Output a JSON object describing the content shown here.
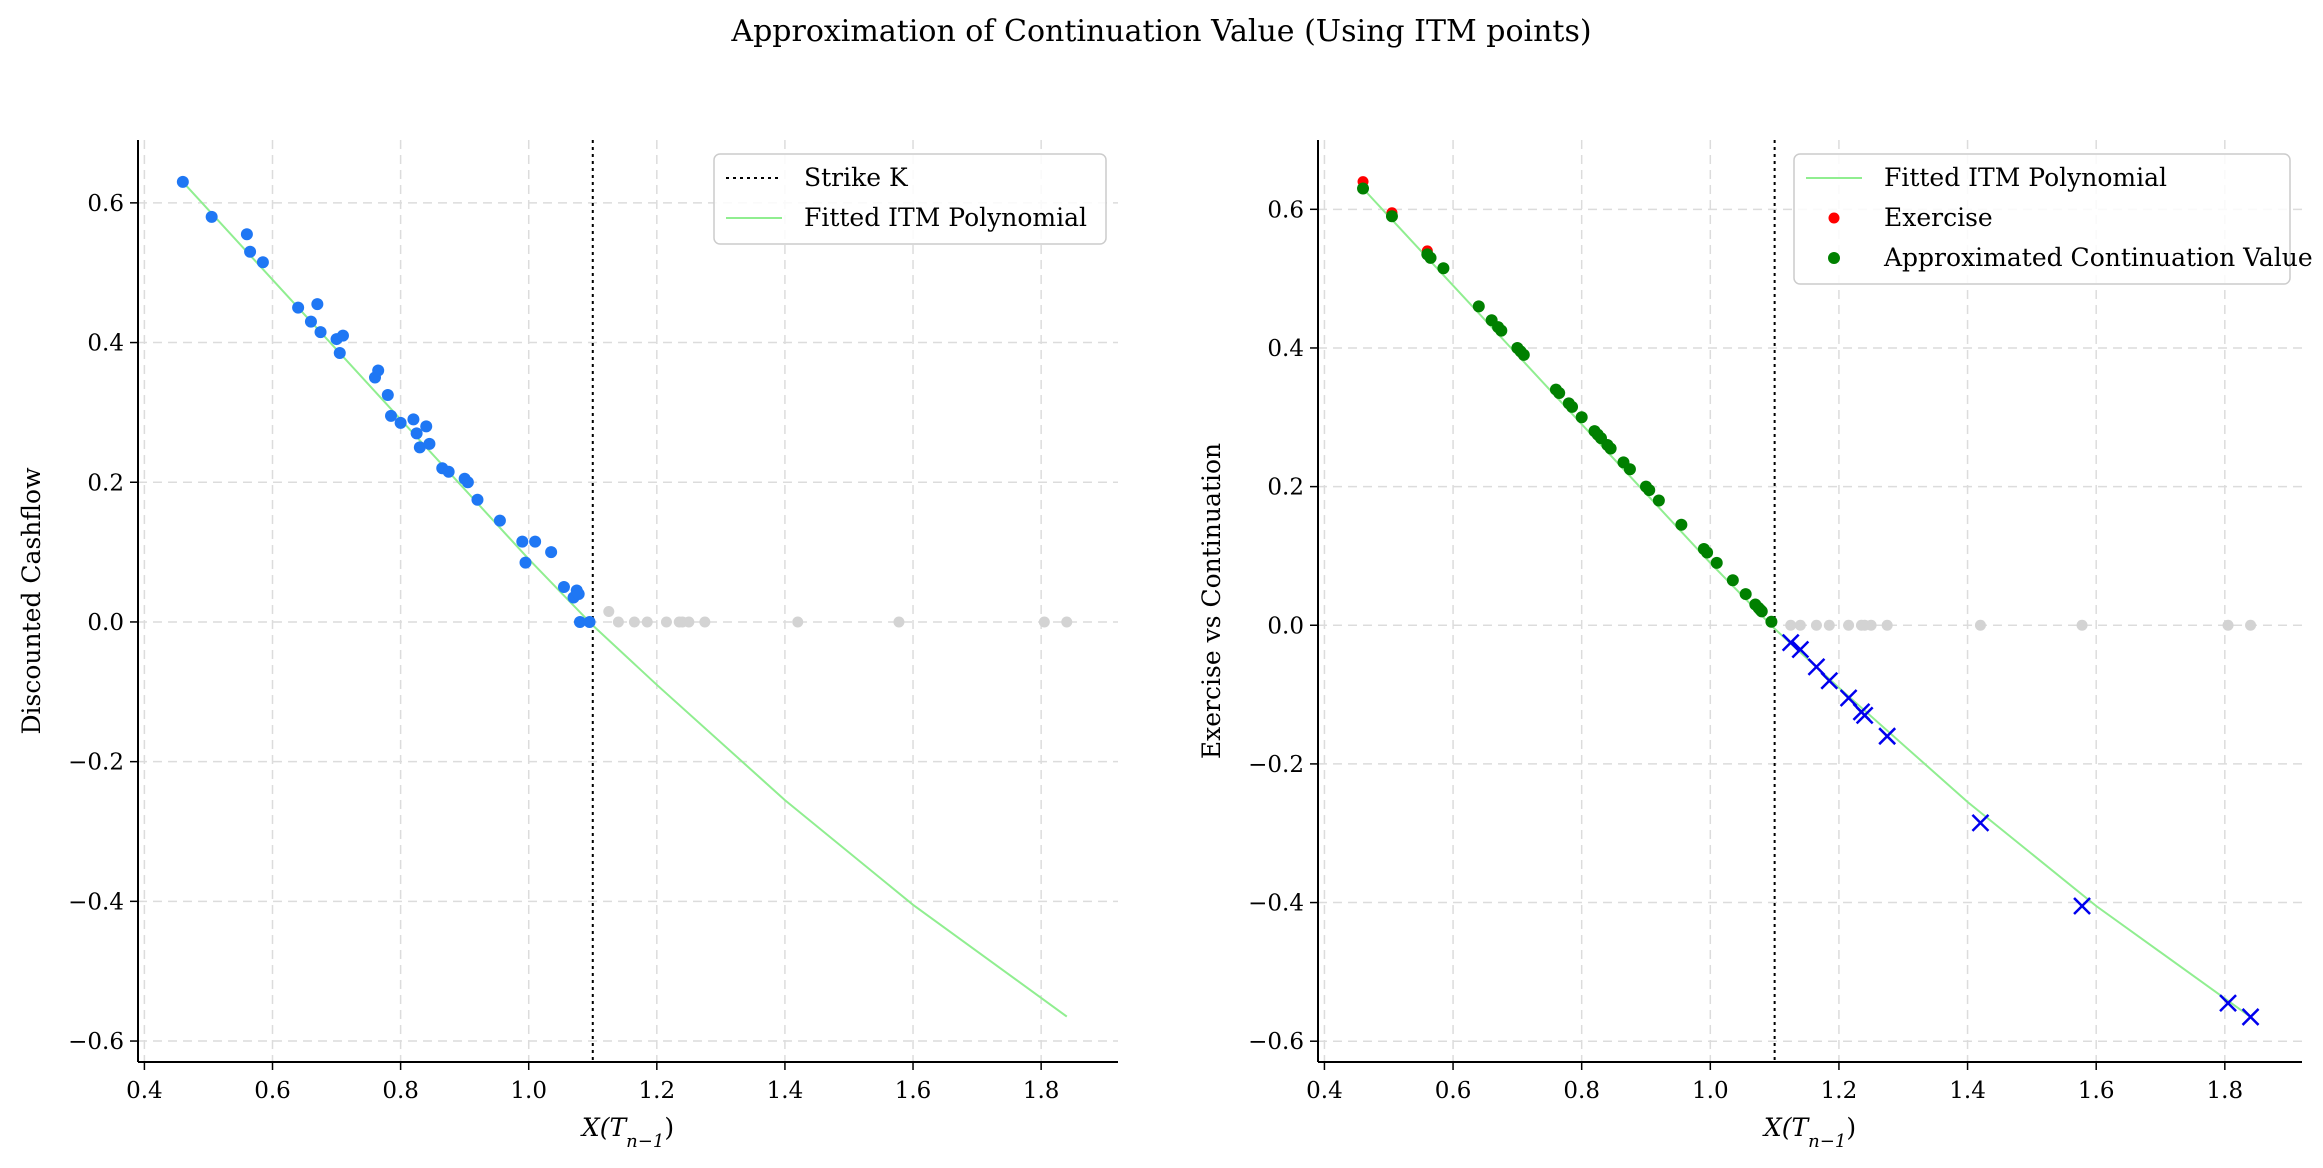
{
  "figure": {
    "suptitle": "Approximation of Continuation Value (Using ITM points)"
  },
  "chart_data": [
    {
      "type": "scatter",
      "id": "left",
      "title": "",
      "xlabel": "X(T_{n−1})",
      "ylabel": "Discounted Cashflow",
      "xlim": [
        0.39,
        1.92
      ],
      "ylim": [
        -0.63,
        0.69
      ],
      "xticks": [
        0.4,
        0.6,
        0.8,
        1.0,
        1.2,
        1.4,
        1.6,
        1.8
      ],
      "yticks": [
        -0.6,
        -0.4,
        -0.2,
        0.0,
        0.2,
        0.4,
        0.6
      ],
      "grid": true,
      "legend_position": "top-right",
      "strike": 1.1,
      "legend": [
        "Strike K",
        "Fitted ITM Polynomial"
      ],
      "polynomial": {
        "name": "Fitted ITM Polynomial",
        "color": "#90ee90",
        "x": [
          0.46,
          0.6,
          0.8,
          1.0,
          1.1,
          1.2,
          1.4,
          1.6,
          1.84
        ],
        "y": [
          0.63,
          0.49,
          0.29,
          0.09,
          -0.005,
          -0.09,
          -0.255,
          -0.405,
          -0.565
        ]
      },
      "itm_points": {
        "color": "#1f77f4",
        "x": [
          0.46,
          0.505,
          0.56,
          0.565,
          0.585,
          0.64,
          0.66,
          0.67,
          0.675,
          0.7,
          0.705,
          0.71,
          0.76,
          0.765,
          0.78,
          0.785,
          0.8,
          0.82,
          0.825,
          0.83,
          0.84,
          0.845,
          0.865,
          0.875,
          0.9,
          0.905,
          0.92,
          0.955,
          0.99,
          0.995,
          1.01,
          1.035,
          1.055,
          1.07,
          1.075,
          1.078,
          1.08,
          1.095
        ],
        "y": [
          0.63,
          0.58,
          0.555,
          0.53,
          0.515,
          0.45,
          0.43,
          0.455,
          0.415,
          0.405,
          0.385,
          0.41,
          0.35,
          0.36,
          0.325,
          0.295,
          0.285,
          0.29,
          0.27,
          0.25,
          0.28,
          0.255,
          0.22,
          0.215,
          0.205,
          0.2,
          0.175,
          0.145,
          0.115,
          0.085,
          0.115,
          0.1,
          0.05,
          0.035,
          0.045,
          0.04,
          0.0,
          0.0
        ]
      },
      "otm_points": {
        "color": "#d3d3d3",
        "x": [
          1.125,
          1.14,
          1.165,
          1.185,
          1.215,
          1.235,
          1.24,
          1.25,
          1.275,
          1.42,
          1.578,
          1.805,
          1.84
        ],
        "y": [
          0.015,
          0.0,
          0.0,
          0.0,
          0.0,
          0.0,
          0.0,
          0.0,
          0.0,
          0.0,
          0.0,
          0.0,
          0.0
        ]
      }
    },
    {
      "type": "scatter",
      "id": "right",
      "title": "",
      "xlabel": "X(T_{n−1})",
      "ylabel": "Exercise vs Continuation",
      "xlim": [
        0.39,
        1.92
      ],
      "ylim": [
        -0.63,
        0.7
      ],
      "xticks": [
        0.4,
        0.6,
        0.8,
        1.0,
        1.2,
        1.4,
        1.6,
        1.8
      ],
      "yticks": [
        -0.6,
        -0.4,
        -0.2,
        0.0,
        0.2,
        0.4,
        0.6
      ],
      "grid": true,
      "legend_position": "top-right",
      "strike": 1.1,
      "legend": [
        "Fitted ITM Polynomial",
        "Exercise",
        "Approximated Continuation Value"
      ],
      "polynomial": {
        "name": "Fitted ITM Polynomial",
        "color": "#90ee90",
        "x": [
          0.46,
          0.6,
          0.8,
          1.0,
          1.1,
          1.2,
          1.4,
          1.6,
          1.84
        ],
        "y": [
          0.63,
          0.49,
          0.29,
          0.09,
          -0.005,
          -0.09,
          -0.255,
          -0.405,
          -0.565
        ]
      },
      "exercise_points": {
        "name": "Exercise",
        "color": "#ff0000",
        "x": [
          0.46,
          0.505,
          0.56,
          0.585,
          0.64,
          0.7,
          0.76,
          0.8,
          0.84,
          0.9,
          0.99,
          1.055,
          1.095
        ],
        "y": [
          0.64,
          0.595,
          0.54,
          0.515,
          0.46,
          0.4,
          0.34,
          0.3,
          0.26,
          0.2,
          0.11,
          0.045,
          0.005
        ]
      },
      "continuation_points": {
        "name": "Approximated Continuation Value",
        "color": "#008000",
        "x": [
          0.46,
          0.505,
          0.56,
          0.565,
          0.585,
          0.64,
          0.66,
          0.67,
          0.675,
          0.7,
          0.705,
          0.71,
          0.76,
          0.765,
          0.78,
          0.785,
          0.8,
          0.82,
          0.825,
          0.83,
          0.84,
          0.845,
          0.865,
          0.875,
          0.9,
          0.905,
          0.92,
          0.955,
          0.99,
          0.995,
          1.01,
          1.035,
          1.055,
          1.07,
          1.075,
          1.078,
          1.08,
          1.095
        ],
        "y": [
          0.63,
          0.59,
          0.535,
          0.53,
          0.515,
          0.46,
          0.44,
          0.43,
          0.425,
          0.4,
          0.395,
          0.39,
          0.34,
          0.335,
          0.32,
          0.315,
          0.3,
          0.28,
          0.275,
          0.27,
          0.26,
          0.255,
          0.235,
          0.225,
          0.2,
          0.195,
          0.18,
          0.145,
          0.11,
          0.105,
          0.09,
          0.065,
          0.045,
          0.03,
          0.025,
          0.022,
          0.02,
          0.005
        ]
      },
      "otm_points": {
        "color": "#d3d3d3",
        "x": [
          1.125,
          1.14,
          1.165,
          1.185,
          1.215,
          1.235,
          1.24,
          1.25,
          1.275,
          1.42,
          1.578,
          1.805,
          1.84
        ],
        "y": [
          0.0,
          0.0,
          0.0,
          0.0,
          0.0,
          0.0,
          0.0,
          0.0,
          0.0,
          0.0,
          0.0,
          0.0,
          0.0
        ]
      },
      "otm_continuation_points": {
        "color": "#0000ee",
        "marker": "x",
        "x": [
          1.125,
          1.14,
          1.165,
          1.185,
          1.215,
          1.235,
          1.24,
          1.275,
          1.42,
          1.578,
          1.805,
          1.84
        ],
        "y": [
          -0.025,
          -0.035,
          -0.06,
          -0.08,
          -0.105,
          -0.125,
          -0.13,
          -0.16,
          -0.285,
          -0.405,
          -0.545,
          -0.565
        ]
      }
    }
  ]
}
